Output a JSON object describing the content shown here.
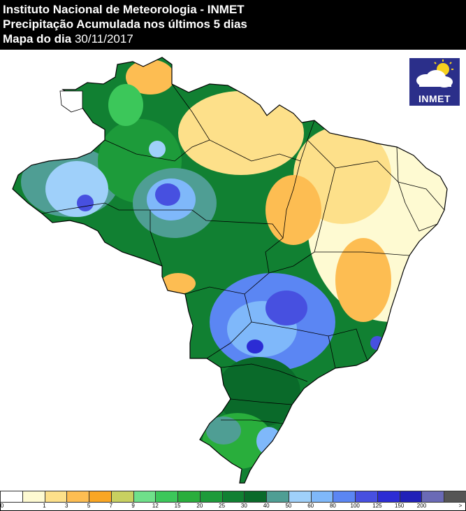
{
  "header": {
    "org": "Instituto Nacional de Meteorologia - INMET",
    "title": "Precipitação Acumulada nos últimos 5 dias",
    "date_prefix": "Mapa do dia",
    "date": "30/11/2017"
  },
  "logo": {
    "text": "INMET",
    "icon": "sun-cloud-icon"
  },
  "legend": {
    "colors": [
      "#ffffff",
      "#fefad2",
      "#fde08a",
      "#fdbd52",
      "#f9a623",
      "#c8d060",
      "#6fe08a",
      "#3cc75a",
      "#29ae3c",
      "#1d9b3a",
      "#118032",
      "#0a6a2a",
      "#4f9e94",
      "#9fd0fa",
      "#7fb8fa",
      "#5b86f3",
      "#4750e0",
      "#2c2cd4",
      "#2020b8",
      "#6a6ab6",
      "#555555"
    ],
    "ticks": [
      "0",
      "1",
      "3",
      "5",
      "7",
      "9",
      "12",
      "15",
      "20",
      "25",
      "30",
      "40",
      "50",
      "60",
      "80",
      "100",
      "125",
      "150",
      "200",
      ">"
    ]
  }
}
